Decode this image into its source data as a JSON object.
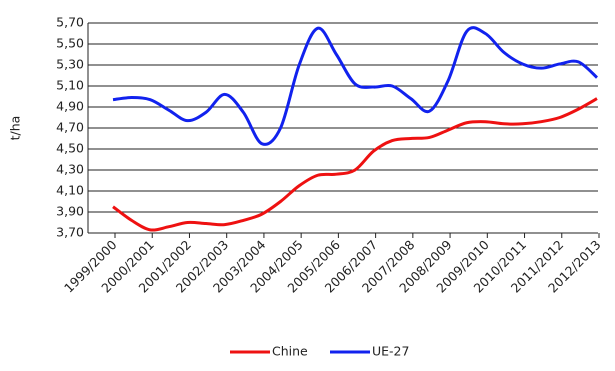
{
  "chart_data": {
    "type": "line",
    "y_label": "t/ha",
    "categories": [
      "1999/2000",
      null,
      "2000/2001",
      null,
      "2001/2002",
      null,
      "2002/2003",
      null,
      "2003/2004",
      null,
      "2004/2005",
      null,
      "2005/2006",
      null,
      "2006/2007",
      null,
      "2007/2008",
      null,
      "2008/2009",
      null,
      "2009/2010",
      null,
      "2010/2011",
      null,
      "2011/2012",
      null,
      "2012/2013"
    ],
    "series": [
      {
        "name": "Chine",
        "color": "#ee1111",
        "values": [
          3.95,
          3.82,
          3.73,
          3.76,
          3.8,
          3.79,
          3.78,
          3.82,
          3.88,
          4.0,
          4.15,
          4.25,
          4.26,
          4.3,
          4.48,
          4.58,
          4.6,
          4.61,
          4.68,
          4.75,
          4.76,
          4.74,
          4.74,
          4.76,
          4.8,
          4.88,
          4.98
        ]
      },
      {
        "name": "UE-27",
        "color": "#1122ee",
        "values": [
          4.97,
          4.99,
          4.97,
          4.87,
          4.77,
          4.85,
          5.02,
          4.85,
          4.55,
          4.7,
          5.3,
          5.65,
          5.4,
          5.12,
          5.09,
          5.1,
          4.98,
          4.86,
          5.15,
          5.62,
          5.6,
          5.42,
          5.31,
          5.27,
          5.31,
          5.33,
          5.18
        ]
      }
    ],
    "ylim": [
      3.7,
      5.7
    ],
    "yticks": [
      {
        "value": 3.7,
        "label": "3,70"
      },
      {
        "value": 3.9,
        "label": "3,90"
      },
      {
        "value": 4.1,
        "label": "4,10"
      },
      {
        "value": 4.3,
        "label": "4,30"
      },
      {
        "value": 4.5,
        "label": "4,50"
      },
      {
        "value": 4.7,
        "label": "4,70"
      },
      {
        "value": 4.9,
        "label": "4,90"
      },
      {
        "value": 5.1,
        "label": "5,10"
      },
      {
        "value": 5.3,
        "label": "5,30"
      },
      {
        "value": 5.5,
        "label": "5,50"
      },
      {
        "value": 5.7,
        "label": "5,70"
      }
    ],
    "grid": true,
    "legend": "bottom"
  }
}
